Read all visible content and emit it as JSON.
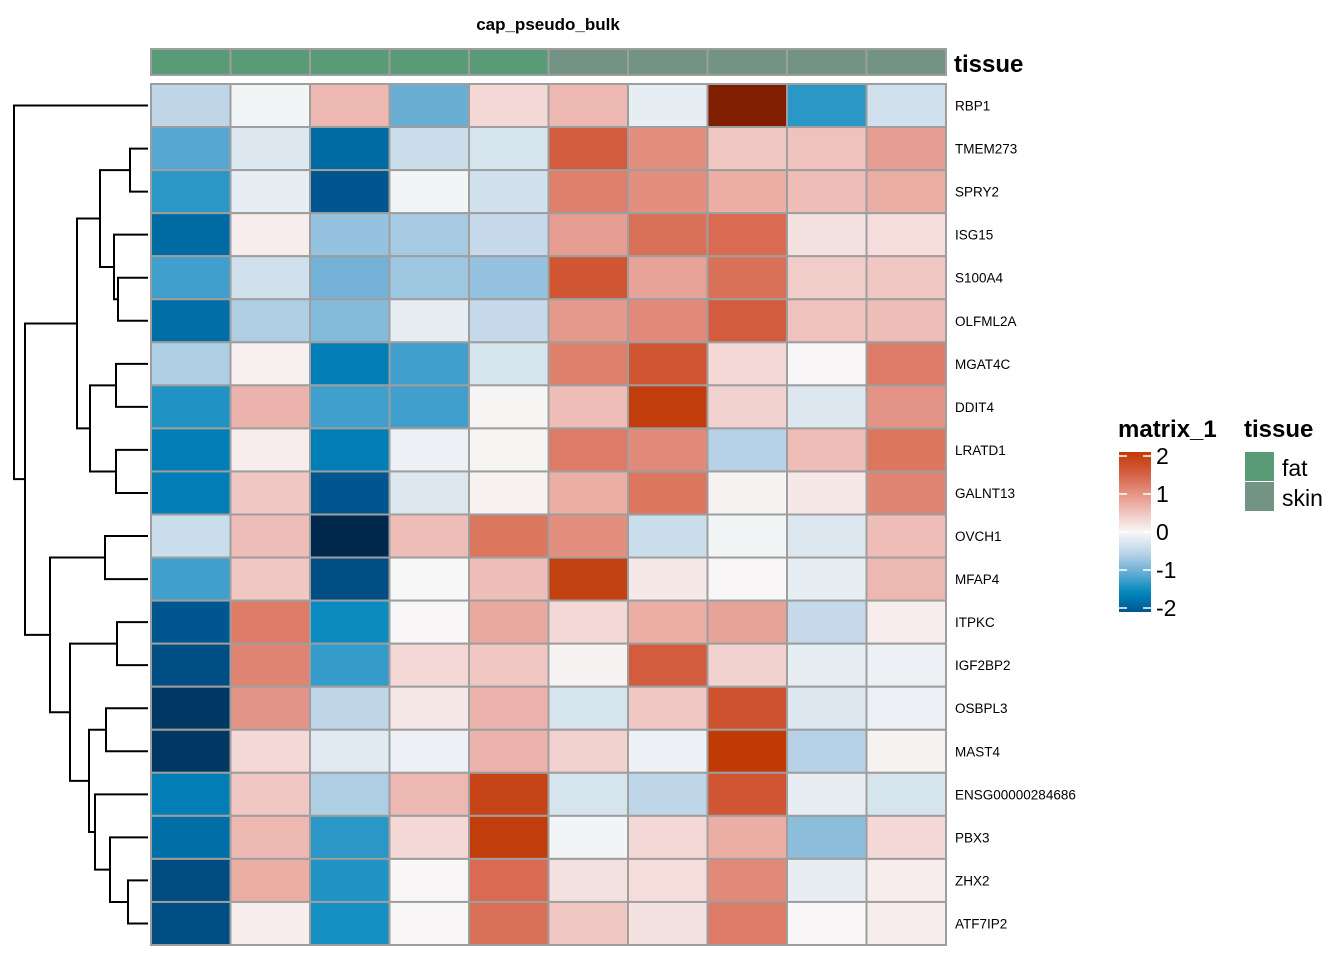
{
  "chart_data": {
    "type": "heatmap",
    "title": "cap_pseudo_bulk",
    "annotation_name": "tissue",
    "columns_tissue": [
      "fat",
      "fat",
      "fat",
      "fat",
      "fat",
      "skin",
      "skin",
      "skin",
      "skin",
      "skin"
    ],
    "rows": [
      "RBP1",
      "TMEM273",
      "SPRY2",
      "ISG15",
      "S100A4",
      "OLFML2A",
      "MGAT4C",
      "DDIT4",
      "LRATD1",
      "GALNT13",
      "OVCH1",
      "MFAP4",
      "ITPKC",
      "IGF2BP2",
      "OSBPL3",
      "MAST4",
      "ENSG00000284686",
      "PBX3",
      "ZHX2",
      "ATF7IP2"
    ],
    "values": [
      [
        -0.5,
        -0.05,
        0.6,
        -1.0,
        0.3,
        0.6,
        -0.15,
        2.3,
        -1.3,
        -0.35
      ],
      [
        -1.1,
        -0.25,
        -1.8,
        -0.4,
        -0.3,
        1.5,
        1.0,
        0.45,
        0.5,
        0.85
      ],
      [
        -1.3,
        -0.15,
        -2.0,
        -0.05,
        -0.35,
        1.15,
        1.0,
        0.7,
        0.55,
        0.7
      ],
      [
        -1.8,
        0.1,
        -0.75,
        -0.65,
        -0.45,
        0.85,
        1.3,
        1.35,
        0.2,
        0.25
      ],
      [
        -1.2,
        -0.35,
        -0.95,
        -0.7,
        -0.75,
        1.6,
        0.8,
        1.3,
        0.4,
        0.45
      ],
      [
        -1.75,
        -0.6,
        -0.85,
        -0.15,
        -0.45,
        0.9,
        1.05,
        1.5,
        0.5,
        0.55
      ],
      [
        -0.6,
        0.08,
        -1.6,
        -1.2,
        -0.3,
        1.15,
        1.6,
        0.3,
        0.02,
        1.2
      ],
      [
        -1.35,
        0.65,
        -1.2,
        -1.2,
        0.03,
        0.55,
        1.95,
        0.35,
        -0.25,
        0.95
      ],
      [
        -1.6,
        0.1,
        -1.6,
        -0.1,
        0.03,
        1.2,
        1.05,
        -0.55,
        0.55,
        1.25
      ],
      [
        -1.6,
        0.45,
        -2.0,
        -0.25,
        0.06,
        0.7,
        1.25,
        0.05,
        0.15,
        1.1
      ],
      [
        -0.4,
        0.55,
        -2.6,
        0.55,
        1.25,
        1.0,
        -0.4,
        -0.05,
        -0.25,
        0.55
      ],
      [
        -1.2,
        0.45,
        -2.1,
        0.01,
        0.55,
        1.9,
        0.15,
        0.02,
        -0.15,
        0.6
      ],
      [
        -2.0,
        1.2,
        -1.45,
        0.02,
        0.75,
        0.3,
        0.7,
        0.8,
        -0.45,
        0.1
      ],
      [
        -2.1,
        1.1,
        -1.25,
        0.3,
        0.45,
        0.05,
        1.5,
        0.35,
        -0.15,
        -0.1
      ],
      [
        -2.4,
        0.95,
        -0.5,
        0.15,
        0.65,
        -0.3,
        0.45,
        1.65,
        -0.25,
        -0.1
      ],
      [
        -2.4,
        0.3,
        -0.2,
        -0.1,
        0.65,
        0.35,
        -0.1,
        2.0,
        -0.55,
        0.05
      ],
      [
        -1.6,
        0.45,
        -0.6,
        0.6,
        1.85,
        -0.3,
        -0.5,
        1.6,
        -0.15,
        -0.3
      ],
      [
        -1.75,
        0.6,
        -1.3,
        0.3,
        1.95,
        -0.05,
        0.3,
        0.7,
        -0.8,
        0.3
      ],
      [
        -2.15,
        0.7,
        -1.35,
        0.02,
        1.35,
        0.2,
        0.25,
        1.05,
        -0.15,
        0.1
      ],
      [
        -2.1,
        0.1,
        -1.4,
        0.02,
        1.3,
        0.45,
        0.2,
        1.2,
        0.02,
        0.1
      ]
    ],
    "color_scale": {
      "name": "matrix_1",
      "ticks": [
        2,
        1,
        0,
        -1,
        -2
      ],
      "range": [
        -2,
        2
      ],
      "stops": [
        {
          "v": -2.6,
          "c": "#00284d"
        },
        {
          "v": -2,
          "c": "#00568f"
        },
        {
          "v": -1.5,
          "c": "#0088bf"
        },
        {
          "v": -1,
          "c": "#6aaed4"
        },
        {
          "v": -0.5,
          "c": "#bfd6e8"
        },
        {
          "v": 0,
          "c": "#f8f8f8"
        },
        {
          "v": 0.5,
          "c": "#efc2bd"
        },
        {
          "v": 1,
          "c": "#e38f80"
        },
        {
          "v": 1.5,
          "c": "#d35c3e"
        },
        {
          "v": 2,
          "c": "#c03a06"
        },
        {
          "v": 2.4,
          "c": "#6b1500"
        }
      ]
    },
    "tissue_legend": {
      "title": "tissue",
      "items": [
        {
          "label": "fat",
          "color": "#599b76"
        },
        {
          "label": "skin",
          "color": "#739484"
        }
      ]
    },
    "row_dendrogram": "(RBP1,((((TMEM273,SPRY2),(ISG15,(S100A4,OLFML2A))),((MGAT4C,DDIT4),(LRATD1,GALNT13))),((OVCH1,MFAP4),((ITPKC,IGF2BP2),((OSBPL3,MAST4),(ENSG00000284686,(PBX3,(ZHX2,ATF7IP2))))))))"
  }
}
